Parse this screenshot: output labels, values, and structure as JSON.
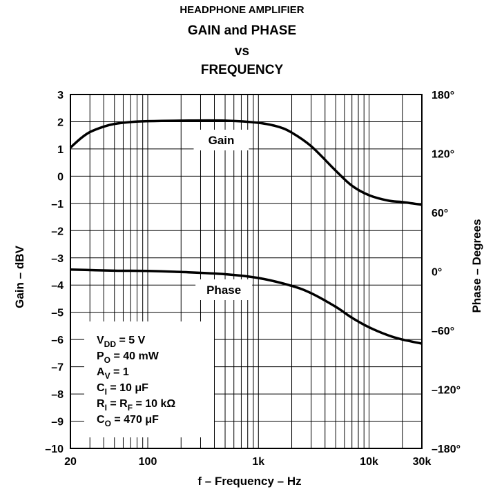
{
  "titles": {
    "line1": "HEADPHONE AMPLIFIER",
    "line2": "GAIN and PHASE",
    "line3": "vs",
    "line4": "FREQUENCY"
  },
  "chart_data": {
    "type": "line",
    "xlabel": "f – Frequency – Hz",
    "ylabel": "Gain – dBV",
    "y2label": "Phase – Degrees",
    "xscale": "log",
    "xlim": [
      20,
      30000
    ],
    "ylim": [
      -10,
      3
    ],
    "y2lim": [
      -180,
      180
    ],
    "grid": true,
    "x_ticks": [
      {
        "value": 20,
        "label": "20"
      },
      {
        "value": 100,
        "label": "100"
      },
      {
        "value": 1000,
        "label": "1k"
      },
      {
        "value": 10000,
        "label": "10k"
      },
      {
        "value": 30000,
        "label": "30k"
      }
    ],
    "y_ticks": [
      {
        "value": 3,
        "label": "3"
      },
      {
        "value": 2,
        "label": "2"
      },
      {
        "value": 1,
        "label": "1"
      },
      {
        "value": 0,
        "label": "0"
      },
      {
        "value": -1,
        "label": "-1"
      },
      {
        "value": -2,
        "label": "-2"
      },
      {
        "value": -3,
        "label": "-3"
      },
      {
        "value": -4,
        "label": "-4"
      },
      {
        "value": -5,
        "label": "-5"
      },
      {
        "value": -6,
        "label": "-6"
      },
      {
        "value": -7,
        "label": "-7"
      },
      {
        "value": -8,
        "label": "-8"
      },
      {
        "value": -9,
        "label": "-9"
      },
      {
        "value": -10,
        "label": "-10"
      }
    ],
    "y2_ticks": [
      {
        "value": 180,
        "label": "180°"
      },
      {
        "value": 120,
        "label": "120°"
      },
      {
        "value": 60,
        "label": "60°"
      },
      {
        "value": 0,
        "label": "0°"
      },
      {
        "value": -60,
        "label": "-60°"
      },
      {
        "value": -120,
        "label": "-120°"
      },
      {
        "value": -180,
        "label": "-180°"
      }
    ],
    "series": [
      {
        "name": "Gain",
        "axis": "left",
        "x": [
          20,
          25,
          30,
          40,
          50,
          70,
          100,
          200,
          500,
          1000,
          1500,
          2000,
          3000,
          5000,
          7000,
          10000,
          15000,
          20000,
          30000
        ],
        "y": [
          1.05,
          1.4,
          1.62,
          1.82,
          1.92,
          1.99,
          2.02,
          2.04,
          2.04,
          1.96,
          1.82,
          1.6,
          1.1,
          0.2,
          -0.35,
          -0.7,
          -0.9,
          -0.95,
          -1.05
        ]
      },
      {
        "name": "Phase",
        "axis": "right",
        "x": [
          20,
          50,
          100,
          200,
          500,
          1000,
          2000,
          3000,
          5000,
          7000,
          10000,
          15000,
          20000,
          30000
        ],
        "y": [
          -3.43,
          -3.47,
          -3.48,
          -3.52,
          -3.6,
          -3.74,
          -4.03,
          -4.3,
          -4.8,
          -5.2,
          -5.55,
          -5.85,
          -6.0,
          -6.15
        ]
      }
    ],
    "annotations": {
      "gain_label": "Gain",
      "phase_label": "Phase"
    },
    "conditions": [
      {
        "main": "V",
        "sub": "DD",
        "rest": " = 5 V"
      },
      {
        "main": "P",
        "sub": "O",
        "rest": " = 40 mW"
      },
      {
        "main": "A",
        "sub": "V",
        "rest": " = 1"
      },
      {
        "main": "C",
        "sub": "I",
        "rest": " = 10 μF"
      },
      {
        "main": "R",
        "sub": "I",
        "rest": " = R",
        "sub2": "F",
        "rest2": " = 10 kΩ"
      },
      {
        "main": "C",
        "sub": "O",
        "rest": " = 470 μF"
      }
    ]
  }
}
